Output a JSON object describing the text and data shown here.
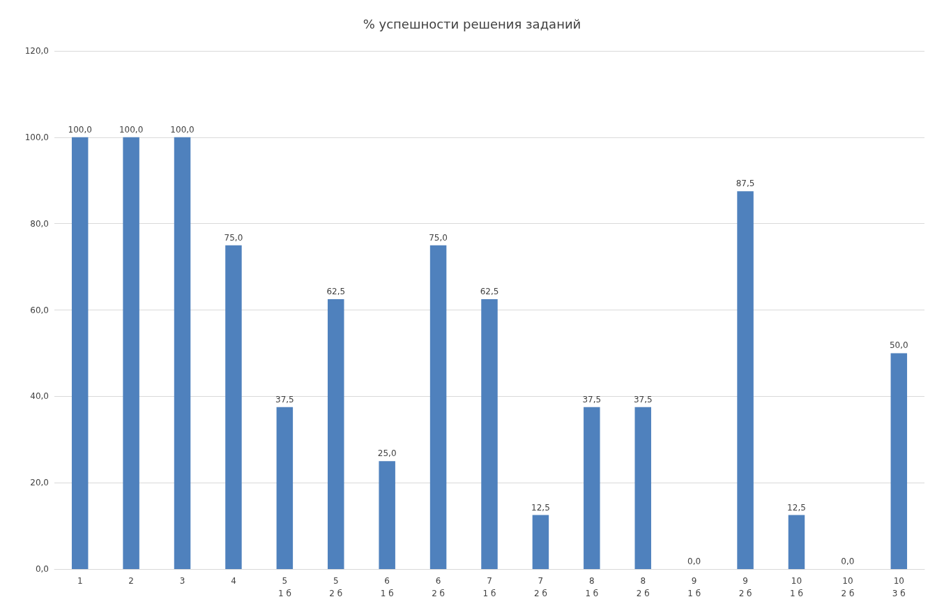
{
  "chart_data": {
    "type": "bar",
    "title": "% успешности решения заданий",
    "categories": [
      "1",
      "2",
      "3",
      "4",
      "5\n1 б",
      "5\n2 б",
      "6\n1 б",
      "6\n2 б",
      "7\n1 б",
      "7\n2 б",
      "8\n1 б",
      "8\n2 б",
      "9\n1 б",
      "9\n2 б",
      "10\n1 б",
      "10\n2 б",
      "10\n3 б"
    ],
    "values": [
      100,
      100,
      100,
      75,
      37.5,
      62.5,
      25,
      75,
      62.5,
      12.5,
      37.5,
      37.5,
      0,
      87.5,
      12.5,
      0,
      50
    ],
    "value_labels": [
      "100,0",
      "100,0",
      "100,0",
      "75,0",
      "37,5",
      "62,5",
      "25,0",
      "75,0",
      "62,5",
      "12,5",
      "37,5",
      "37,5",
      "0,0",
      "87,5",
      "12,5",
      "0,0",
      "50,0"
    ],
    "color": "#4f81bd",
    "ylim": [
      0,
      120
    ],
    "yticks": [
      {
        "value": 0,
        "label": "0,0"
      },
      {
        "value": 20,
        "label": "20,0"
      },
      {
        "value": 40,
        "label": "40,0"
      },
      {
        "value": 60,
        "label": "60,0"
      },
      {
        "value": 80,
        "label": "80,0"
      },
      {
        "value": 100,
        "label": "100,0"
      },
      {
        "value": 120,
        "label": "120,0"
      }
    ],
    "grid": "y"
  }
}
